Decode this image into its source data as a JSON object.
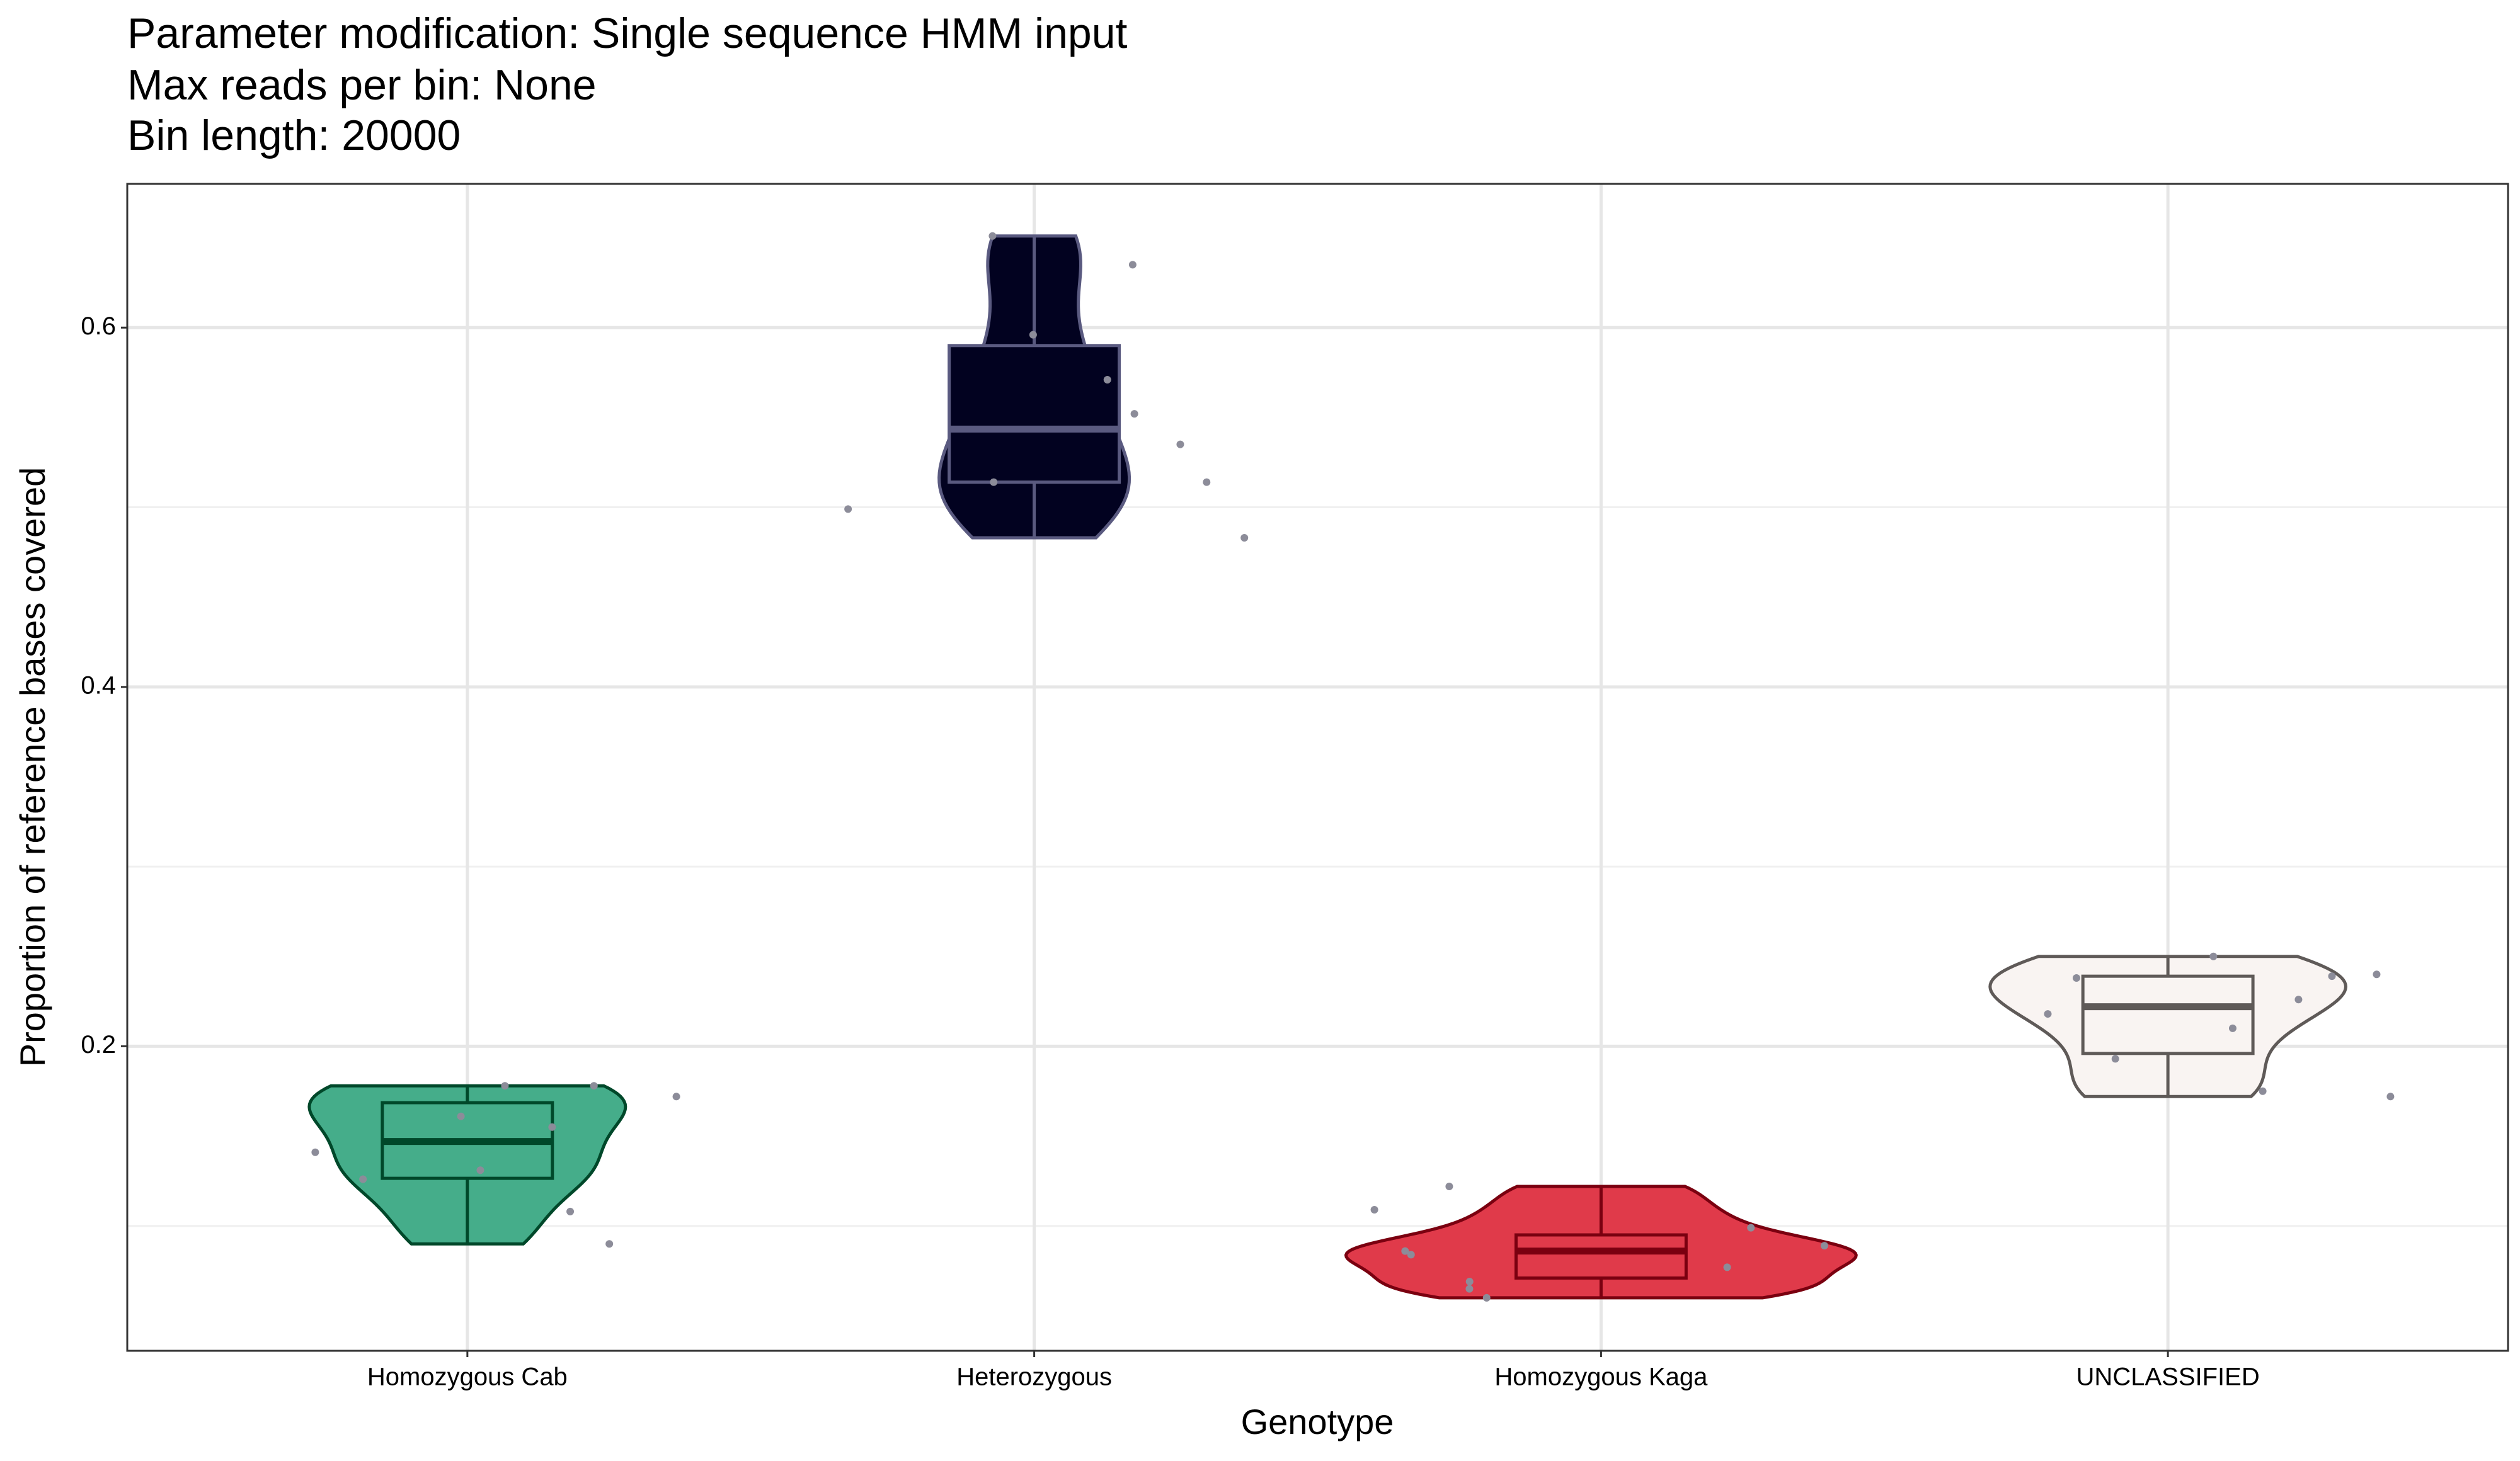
{
  "chart_data": {
    "type": "violin",
    "title": "Parameter modification: Single sequence HMM input",
    "subtitle": [
      "Max reads per bin: None",
      "Bin length: 20000"
    ],
    "x_label": "Genotype",
    "y_label": "Proportion of reference bases covered",
    "categories": [
      "Homozygous Cab",
      "Heterozygous",
      "Homozygous Kaga",
      "UNCLASSIFIED"
    ],
    "colors": [
      "#45ad8a",
      "#020220",
      "#e03a4a",
      "#f9f4f2"
    ],
    "outline_colors": [
      "#00482a",
      "#5a5a80",
      "#7a0010",
      "#5f5a58"
    ],
    "point_color": "#8c8c99",
    "box": [
      {
        "min": 0.09,
        "q1": 0.1265,
        "median": 0.147,
        "q3": 0.1686,
        "max": 0.178
      },
      {
        "min": 0.483,
        "q1": 0.514,
        "median": 0.5435,
        "q3": 0.59,
        "max": 0.651
      },
      {
        "min": 0.06,
        "q1": 0.071,
        "median": 0.086,
        "q3": 0.095,
        "max": 0.122
      },
      {
        "min": 0.172,
        "q1": 0.196,
        "median": 0.222,
        "q3": 0.239,
        "max": 0.25
      }
    ],
    "points": [
      [
        0.172,
        0.131,
        0.178,
        0.155,
        0.108,
        0.09,
        0.178,
        0.141,
        0.126,
        0.161
      ],
      [
        0.514,
        0.499,
        0.596,
        0.651,
        0.552,
        0.483,
        0.635,
        0.535,
        0.571,
        0.514
      ],
      [
        0.077,
        0.099,
        0.065,
        0.086,
        0.122,
        0.06,
        0.109,
        0.084,
        0.069,
        0.089
      ],
      [
        0.239,
        0.21,
        0.175,
        0.25,
        0.226,
        0.172,
        0.24,
        0.218,
        0.193,
        0.238
      ]
    ],
    "ylim": [
      0.0305,
      0.68
    ],
    "yticks": [
      0.2,
      0.4,
      0.6
    ],
    "minor_yticks": [
      0.1,
      0.3,
      0.5
    ],
    "grid": true
  }
}
